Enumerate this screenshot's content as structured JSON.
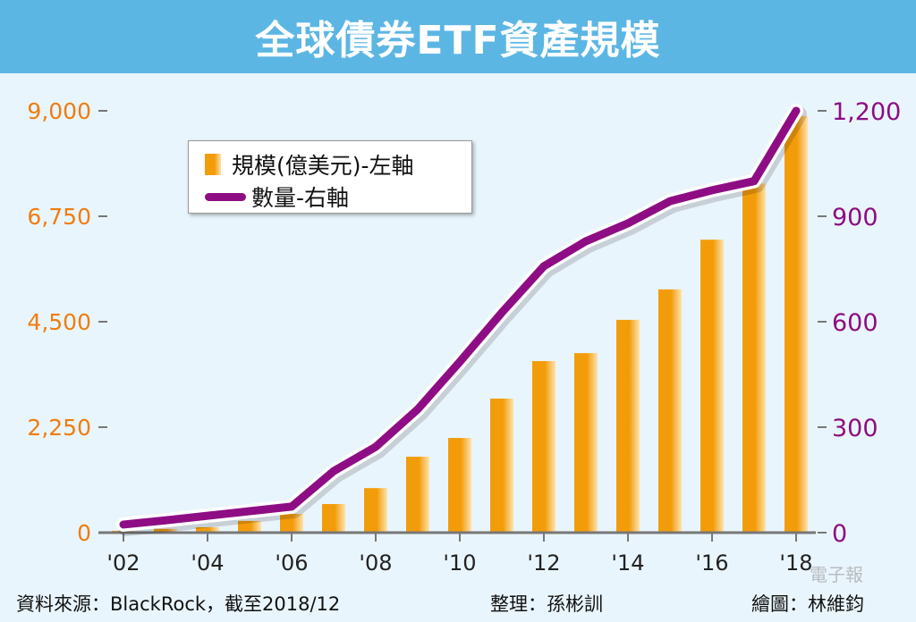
{
  "title": "全球債券ETF資產規模",
  "chart_data": {
    "type": "bar+line",
    "title": "全球債券ETF資產規模",
    "categories": [
      "2002",
      "2003",
      "2004",
      "2005",
      "2006",
      "2007",
      "2008",
      "2009",
      "2010",
      "2011",
      "2012",
      "2013",
      "2014",
      "2015",
      "2016",
      "2017",
      "2018"
    ],
    "x_tick_labels": [
      "'02",
      "'04",
      "'06",
      "'08",
      "'10",
      "'12",
      "'14",
      "'16",
      "'18"
    ],
    "series": [
      {
        "name": "規模(億美元)-左軸",
        "type": "bar",
        "axis": "left",
        "color": "#f39c0a",
        "values": [
          40,
          80,
          115,
          250,
          400,
          610,
          950,
          1620,
          2020,
          2860,
          3660,
          3830,
          4540,
          5190,
          6250,
          7450,
          8890
        ]
      },
      {
        "name": "數量-右軸",
        "type": "line",
        "axis": "right",
        "color": "#8e0d84",
        "values": [
          23,
          35,
          48,
          61,
          74,
          175,
          244,
          351,
          486,
          626,
          758,
          829,
          880,
          943,
          974,
          1000,
          1200
        ]
      }
    ],
    "left_axis": {
      "range": [
        0,
        9000
      ],
      "ticks": [
        "0",
        "2,250",
        "4,500",
        "6,750",
        "9,000"
      ],
      "color": "#ef7d10"
    },
    "right_axis": {
      "range": [
        0,
        1200
      ],
      "ticks": [
        "0",
        "300",
        "600",
        "900",
        "1,200"
      ],
      "color": "#8e0d84"
    },
    "legend_position": "top-left",
    "grid": false
  },
  "footer": {
    "source": "資料來源：BlackRock，截至2018/12",
    "editor": "整理：孫彬訓",
    "artist": "繪圖：林維鈞"
  },
  "watermark": "電子報"
}
